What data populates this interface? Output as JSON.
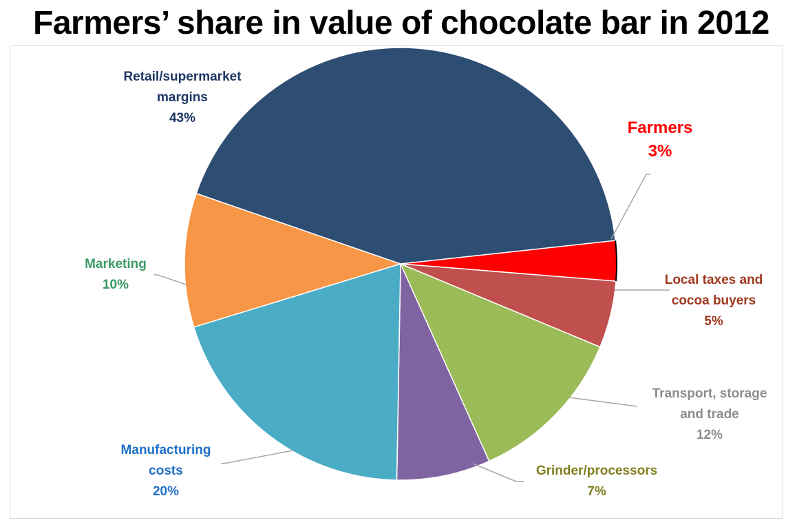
{
  "title": "Farmers’ share in value of chocolate bar in 2012",
  "chart_data": {
    "type": "pie",
    "title": "Farmers’ share in value of chocolate bar in 2012",
    "unit": "%",
    "legend": "none",
    "slices": [
      {
        "label_lines": [
          "Farmers"
        ],
        "label": "Farmers",
        "value": 3,
        "value_label": "3%",
        "color": "#ff0000",
        "label_color": "#ff0000"
      },
      {
        "label_lines": [
          "Local taxes and",
          "cocoa buyers"
        ],
        "label": "Local taxes and cocoa buyers",
        "value": 5,
        "value_label": "5%",
        "color": "#c0504d",
        "label_color": "#a0391f"
      },
      {
        "label_lines": [
          "Transport, storage",
          "and trade"
        ],
        "label": "Transport, storage and trade",
        "value": 12,
        "value_label": "12%",
        "color": "#9bbb59",
        "label_color": "#8c8c8c"
      },
      {
        "label_lines": [
          "Grinder/processors"
        ],
        "label": "Grinder/processors",
        "value": 7,
        "value_label": "7%",
        "color": "#8064a2",
        "label_color": "#7f7f1f"
      },
      {
        "label_lines": [
          "Manufacturing",
          "costs"
        ],
        "label": "Manufacturing costs",
        "value": 20,
        "value_label": "20%",
        "color": "#4bacc6",
        "label_color": "#1f6fc6"
      },
      {
        "label_lines": [
          "Marketing"
        ],
        "label": "Marketing",
        "value": 10,
        "value_label": "10%",
        "color": "#f79646",
        "label_color": "#3a9a66"
      },
      {
        "label_lines": [
          "Retail/supermarket",
          "margins"
        ],
        "label": "Retail/supermarket margins",
        "value": 43,
        "value_label": "43%",
        "color": "#2e4d73",
        "label_color": "#1f3864"
      }
    ]
  }
}
